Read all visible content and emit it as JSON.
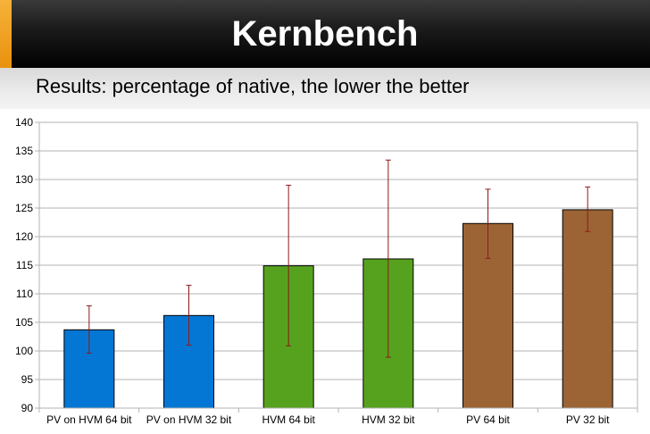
{
  "header": {
    "title": "Kernbench",
    "subtitle": "Results: percentage of native, the lower the better"
  },
  "chart_data": {
    "type": "bar",
    "title": "",
    "xlabel": "",
    "ylabel": "",
    "categories": [
      "PV on HVM 64 bit",
      "PV on HVM 32 bit",
      "HVM 64 bit",
      "HVM 32 bit",
      "PV 64 bit",
      "PV 32 bit"
    ],
    "values": [
      103.7,
      106.2,
      114.9,
      116.1,
      122.3,
      124.7
    ],
    "error_low": [
      99.6,
      101.0,
      100.9,
      98.9,
      116.2,
      120.9
    ],
    "error_high": [
      107.9,
      111.5,
      129.0,
      133.4,
      128.3,
      128.7
    ],
    "bar_colors": [
      "#0477d4",
      "#0477d4",
      "#56a21e",
      "#56a21e",
      "#9c6434",
      "#9c6434"
    ],
    "error_bar_color": "#8b1a1a",
    "ylim": [
      90,
      140
    ],
    "yticks": [
      90,
      95,
      100,
      105,
      110,
      115,
      120,
      125,
      130,
      135,
      140
    ],
    "grid": true,
    "legend": "none"
  }
}
